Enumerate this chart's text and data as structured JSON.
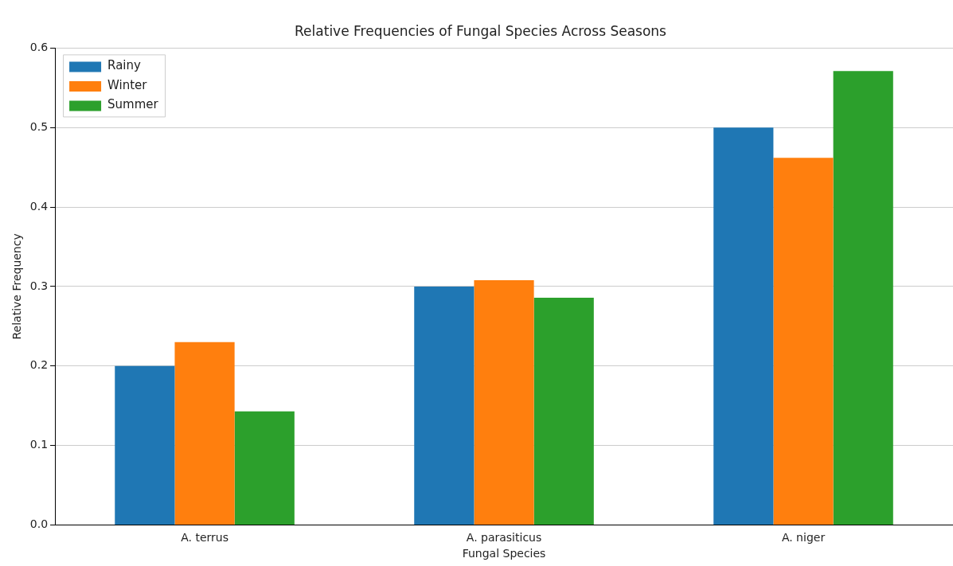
{
  "chart_data": {
    "type": "bar",
    "title": "Relative Frequencies of Fungal Species Across Seasons",
    "xlabel": "Fungal Species",
    "ylabel": "Relative Frequency",
    "categories": [
      "A. terrus",
      "A. parasiticus",
      "A. niger"
    ],
    "series": [
      {
        "name": "Rainy",
        "color": "#1f77b4",
        "values": [
          0.2,
          0.3,
          0.5
        ]
      },
      {
        "name": "Winter",
        "color": "#ff7f0e",
        "values": [
          0.23,
          0.308,
          0.462
        ]
      },
      {
        "name": "Summer",
        "color": "#2ca02c",
        "values": [
          0.143,
          0.286,
          0.571
        ]
      }
    ],
    "ylim": [
      0,
      0.6
    ],
    "yticks": [
      {
        "value": 0,
        "label": "0.0"
      },
      {
        "value": 0.1,
        "label": "0.1"
      },
      {
        "value": 0.2,
        "label": "0.2"
      },
      {
        "value": 0.3,
        "label": "0.3"
      },
      {
        "value": 0.4,
        "label": "0.4"
      },
      {
        "value": 0.5,
        "label": "0.5"
      },
      {
        "value": 0.6,
        "label": "0.6"
      }
    ],
    "grid": "y",
    "legend": "top left"
  }
}
